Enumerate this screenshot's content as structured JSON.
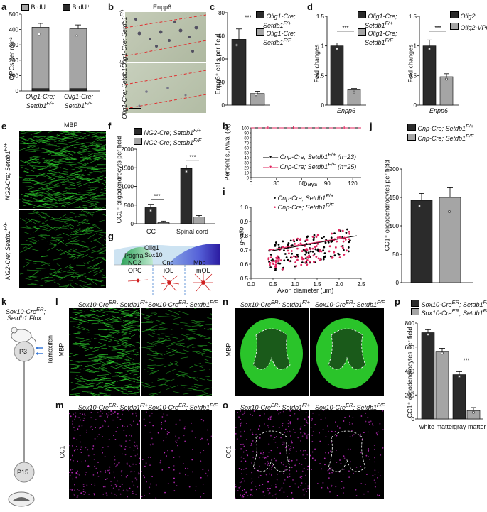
{
  "panel_letters": {
    "a": "a",
    "b": "b",
    "c": "c",
    "d": "d",
    "e": "e",
    "f": "f",
    "g": "g",
    "h": "h",
    "i": "i",
    "j": "j",
    "k": "k",
    "l": "l",
    "m": "m",
    "n": "n",
    "o": "o",
    "p": "p"
  },
  "colors": {
    "dark": "#2b2b2b",
    "grey": "#a5a5a5",
    "red": "#e0245e",
    "green": "#2fd92f",
    "magenta": "#c02bc0"
  },
  "panel_a": {
    "ylabel": "OPCs per mm²",
    "legend": [
      "BrdU⁻",
      "BrdU⁺"
    ],
    "categories": [
      "Olig1-Cre;\nSetdb1F/+",
      "Olig1-Cre;\nSetdb1F/F"
    ]
  },
  "panel_b": {
    "title": "Enpp6",
    "top_label": "Olig1-Cre; Setdb1F/+",
    "bottom_label": "Olig1-Cre; Setdb1F/F"
  },
  "panel_c": {
    "ylabel": "Enpp6⁺ cells per field",
    "legend": [
      "Olig1-Cre; Setdb1F/+",
      "Olig1-Cre; Setdb1F/F"
    ],
    "sig": "***"
  },
  "panel_d1": {
    "ylabel": "Fold changes",
    "legend": [
      "Olig1-Cre; Setdb1F/+",
      "Olig1-Cre; Setdb1F/F"
    ],
    "xlabel": "Enpp6",
    "sig": "***"
  },
  "panel_d2": {
    "ylabel": "Fold changes",
    "legend": [
      "Olig2",
      "Olig2-VP64"
    ],
    "xlabel": "Enpp6",
    "sig": "***"
  },
  "panel_e": {
    "title": "MBP",
    "top_label": "NG2-Cre; Setdb1F/+",
    "bottom_label": "NG2-Cre; Setdb1F/F"
  },
  "panel_f": {
    "ylabel": "CC1⁺ oligodendrocyts per field",
    "legend": [
      "NG2-Cre; Setdb1F/+",
      "NG2-Cre; Setdb1F/F"
    ],
    "categories": [
      "CC",
      "Spinal cord"
    ],
    "sig": "***"
  },
  "panel_g": {
    "markers": [
      "Pdgfra",
      "NG2",
      "Olig1",
      "Sox10",
      "Cnp",
      "Mbp"
    ],
    "stages": [
      "OPC",
      "iOL",
      "mOL"
    ]
  },
  "panel_h": {
    "ylabel": "Percent survival (%)",
    "xlabel": "Days",
    "legend": [
      "Cnp-Cre; Setdb1F/+ (n=23)",
      "Cnp-Cre; Setdb1F/F (n=25)"
    ]
  },
  "panel_i": {
    "ylabel": "g-ratio",
    "xlabel": "Axon diameter (μm)",
    "legend": [
      "Cnp-Cre; Setdb1F/+",
      "Cnp-Cre; Setdb1F/F"
    ]
  },
  "panel_j": {
    "ylabel": "CC1⁺ oligodendrocytes per field",
    "legend": [
      "Cnp-Cre; Setdb1F/+",
      "Cnp-Cre; Setdb1F/F"
    ]
  },
  "panel_k": {
    "line1": "Sox10-CreER;",
    "line2": "Setdb1 Flox",
    "tamoxifen": "Tamoxifen",
    "p3": "P3",
    "p15": "P15"
  },
  "panel_l": {
    "ylabel": "MBP",
    "left": "Sox10-CreER; Setdb1F/+",
    "right": "Sox10-CreER; Setdb1F/F"
  },
  "panel_m": {
    "ylabel": "CC1",
    "left": "Sox10-CreER; Setdb1F/+",
    "right": "Sox10-CreER; Setdb1F/F"
  },
  "panel_n": {
    "ylabel": "MBP",
    "left": "Sox10-CreER; Setdb1F/+",
    "right": "Sox10-CreER; Setdb1F/F"
  },
  "panel_o": {
    "ylabel": "CC1",
    "left": "Sox10-CreER; Setdb1F/+",
    "right": "Sox10-CreER; Setdb1F/F"
  },
  "panel_p": {
    "ylabel": "CC1⁺ oligodendrocytes per field",
    "legend": [
      "Sox10-CreER; Setdb1F/+",
      "Sox10-CreER; Setdb1F/F"
    ],
    "categories": [
      "white matter",
      "gray matter"
    ],
    "sig": "***"
  },
  "chart_data": [
    {
      "panel": "a",
      "type": "bar",
      "stacked": true,
      "categories": [
        "Olig1-Cre; Setdb1F/+",
        "Olig1-Cre; Setdb1F/F"
      ],
      "series": [
        {
          "name": "BrdU⁻",
          "values": [
            400,
            390
          ]
        },
        {
          "name": "BrdU⁺",
          "values": [
            15,
            15
          ]
        }
      ],
      "ylim": [
        0,
        500
      ],
      "yticks": [
        0,
        100,
        200,
        300,
        400,
        500
      ]
    },
    {
      "panel": "c",
      "type": "bar",
      "categories": [
        "Setdb1F/+",
        "Setdb1F/F"
      ],
      "values": [
        57,
        10
      ],
      "errors": [
        9,
        2
      ],
      "ylim": [
        0,
        80
      ],
      "yticks": [
        0,
        20,
        40,
        60,
        80
      ]
    },
    {
      "panel": "d1",
      "type": "bar",
      "categories": [
        "Setdb1F/+",
        "Setdb1F/F"
      ],
      "values": [
        1.0,
        0.26
      ],
      "errors": [
        0.05,
        0.02
      ],
      "ylim": [
        0,
        1.5
      ],
      "yticks": [
        0,
        0.5,
        1.0,
        1.5
      ]
    },
    {
      "panel": "d2",
      "type": "bar",
      "categories": [
        "Olig2",
        "Olig2-VP64"
      ],
      "values": [
        1.0,
        0.48
      ],
      "errors": [
        0.1,
        0.05
      ],
      "ylim": [
        0,
        1.5
      ],
      "yticks": [
        0,
        0.5,
        1.0,
        1.5
      ]
    },
    {
      "panel": "f",
      "type": "bar",
      "categories": [
        "CC",
        "Spinal cord"
      ],
      "series": [
        {
          "name": "NG2-Cre; Setdb1F/+",
          "values": [
            430,
            1480
          ]
        },
        {
          "name": "NG2-Cre; Setdb1F/F",
          "values": [
            30,
            180
          ]
        }
      ],
      "ylim": [
        0,
        2000
      ],
      "yticks": [
        0,
        500,
        1000,
        1500,
        2000
      ]
    },
    {
      "panel": "h",
      "type": "line",
      "xticks": [
        0,
        30,
        60,
        90,
        120
      ],
      "yticks": [
        0,
        10,
        20,
        30,
        40,
        50,
        60,
        70,
        80,
        90,
        100
      ],
      "xlim": [
        0,
        130
      ],
      "ylim": [
        0,
        100
      ],
      "series": [
        {
          "name": "Cnp-Cre; Setdb1F/+ (n=23)",
          "x": [
            0,
            130
          ],
          "y": [
            100,
            100
          ]
        },
        {
          "name": "Cnp-Cre; Setdb1F/F (n=25)",
          "x": [
            0,
            130
          ],
          "y": [
            100,
            100
          ]
        }
      ]
    },
    {
      "panel": "i",
      "type": "scatter",
      "xlim": [
        0,
        2.5
      ],
      "ylim": [
        0.5,
        1.0
      ],
      "xticks": [
        0,
        0.5,
        1.0,
        1.5,
        2.0,
        2.5
      ],
      "yticks": [
        0.5,
        0.6,
        0.7,
        0.8,
        0.9,
        1.0
      ]
    },
    {
      "panel": "j",
      "type": "bar",
      "categories": [
        "Setdb1F/+",
        "Setdb1F/F"
      ],
      "values": [
        145,
        150
      ],
      "errors": [
        12,
        17
      ],
      "ylim": [
        0,
        200
      ],
      "yticks": [
        0,
        50,
        100,
        150,
        200
      ]
    },
    {
      "panel": "p",
      "type": "bar",
      "categories": [
        "white matter",
        "gray matter"
      ],
      "series": [
        {
          "name": "Sox10-CreER; Setdb1F/+",
          "values": [
            720,
            370
          ]
        },
        {
          "name": "Sox10-CreER; Setdb1F/F",
          "values": [
            565,
            70
          ]
        }
      ],
      "ylim": [
        0,
        800
      ],
      "yticks": [
        0,
        200,
        400,
        600,
        800
      ]
    }
  ]
}
